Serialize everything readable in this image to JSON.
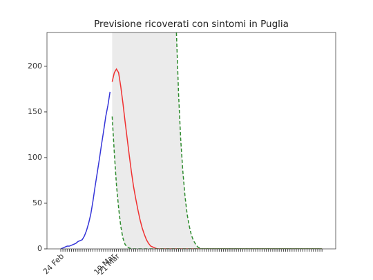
{
  "chart_data": {
    "type": "line",
    "title": "Previsione ricoverati con sintomi in Puglia",
    "categories": [
      "24 Feb",
      null,
      null,
      null,
      null,
      null,
      null,
      null,
      null,
      null,
      null,
      null,
      null,
      null,
      null,
      null,
      null,
      null,
      null,
      null,
      null,
      null,
      null,
      null,
      "19 Mar",
      null,
      "21 Mar",
      null,
      null,
      null,
      null,
      null,
      null,
      null,
      null,
      null,
      null,
      null,
      null,
      null,
      null,
      null,
      null,
      null,
      null,
      null,
      null,
      null,
      null,
      null,
      null,
      null,
      null,
      null,
      null,
      null,
      null,
      null,
      null,
      null,
      null,
      null,
      null,
      null,
      null,
      null,
      null,
      null,
      null,
      null,
      null,
      null,
      null,
      null,
      null,
      null,
      null,
      null,
      null,
      null,
      null,
      null,
      null,
      null,
      null,
      null,
      null,
      null,
      null,
      null,
      null,
      null,
      null,
      null,
      null,
      null,
      null,
      null,
      null,
      null,
      null,
      null,
      null,
      null,
      null,
      null,
      null,
      null,
      null,
      null,
      null,
      null,
      null,
      null,
      null,
      null,
      null,
      null,
      null,
      null,
      null,
      null,
      null
    ],
    "series": [
      {
        "color": "#3535d8",
        "linestyle": "solid",
        "values": [
          0,
          1,
          2,
          3,
          3,
          4,
          5,
          6,
          8,
          9,
          10,
          14,
          20,
          28,
          38,
          52,
          68,
          83,
          98,
          114,
          129,
          145,
          157,
          172,
          null,
          null,
          null,
          null,
          null,
          null,
          null,
          null,
          null,
          null,
          null,
          null,
          null,
          null,
          null,
          null,
          null,
          null,
          null,
          null,
          null,
          null,
          null,
          null,
          null,
          null,
          null,
          null,
          null,
          null,
          null,
          null,
          null,
          null,
          null,
          null,
          null,
          null,
          null,
          null,
          null,
          null,
          null,
          null,
          null,
          null,
          null,
          null,
          null,
          null,
          null,
          null,
          null,
          null,
          null,
          null,
          null,
          null,
          null,
          null,
          null,
          null,
          null,
          null,
          null,
          null,
          null,
          null,
          null,
          null,
          null,
          null,
          null,
          null,
          null,
          null,
          null,
          null,
          null,
          null,
          null,
          null,
          null,
          null,
          null,
          null,
          null,
          null,
          null,
          null,
          null,
          null,
          null,
          null,
          null,
          null,
          null,
          null,
          null
        ]
      },
      {
        "color": "#f03030",
        "linestyle": "solid",
        "values": [
          null,
          null,
          null,
          null,
          null,
          null,
          null,
          null,
          null,
          null,
          null,
          null,
          null,
          null,
          null,
          null,
          null,
          null,
          null,
          null,
          null,
          null,
          null,
          null,
          183,
          193,
          197,
          193,
          178,
          160,
          140,
          121,
          102,
          84,
          68,
          55,
          43,
          32,
          23,
          16,
          10,
          6,
          3,
          2,
          1,
          0,
          0,
          0,
          0,
          0,
          0,
          0,
          0,
          0,
          0,
          0,
          0,
          0,
          0,
          0,
          0,
          0,
          0,
          0,
          0,
          0,
          0,
          0,
          0,
          0,
          0,
          0,
          0,
          0,
          0,
          0,
          0,
          0,
          0,
          0,
          0,
          0,
          0,
          0,
          0,
          0,
          0,
          0,
          0,
          0,
          0,
          0,
          0,
          0,
          0,
          0,
          0,
          0,
          0,
          0,
          0,
          0,
          0,
          0,
          0,
          0,
          0,
          0,
          0,
          0,
          0,
          0,
          0,
          0,
          0,
          0,
          0,
          0,
          0,
          0,
          0,
          0,
          0
        ]
      },
      {
        "color": "#2e8b2e",
        "linestyle": "dashed",
        "values": [
          null,
          null,
          null,
          null,
          null,
          null,
          null,
          null,
          null,
          null,
          null,
          null,
          null,
          null,
          null,
          null,
          null,
          null,
          null,
          null,
          null,
          null,
          null,
          null,
          145,
          105,
          70,
          45,
          25,
          12,
          5,
          2,
          1,
          0,
          0,
          0,
          0,
          0,
          0,
          0,
          0,
          0,
          0,
          0,
          0,
          0,
          0,
          0,
          0,
          0,
          0,
          0,
          0,
          0,
          0,
          0,
          0,
          0,
          0,
          0,
          0,
          0,
          0,
          0,
          0,
          0,
          0,
          0,
          0,
          0,
          0,
          0,
          0,
          0,
          0,
          0,
          0,
          0,
          0,
          0,
          0,
          0,
          0,
          0,
          0,
          0,
          0,
          0,
          0,
          0,
          0,
          0,
          0,
          0,
          0,
          0,
          0,
          0,
          0,
          0,
          0,
          0,
          0,
          0,
          0,
          0,
          0,
          0,
          0,
          0,
          0,
          0,
          0,
          0,
          0,
          0,
          0,
          0,
          0,
          0,
          0,
          0,
          0
        ]
      },
      {
        "color": "#2e8b2e",
        "linestyle": "dashed",
        "values": [
          null,
          null,
          null,
          null,
          null,
          null,
          null,
          null,
          null,
          null,
          null,
          null,
          null,
          null,
          null,
          null,
          null,
          null,
          null,
          null,
          null,
          null,
          null,
          null,
          null,
          null,
          null,
          null,
          null,
          null,
          null,
          null,
          null,
          null,
          null,
          null,
          null,
          null,
          null,
          null,
          null,
          null,
          null,
          null,
          null,
          null,
          null,
          null,
          null,
          null,
          null,
          null,
          null,
          null,
          237,
          170,
          120,
          85,
          58,
          38,
          25,
          15,
          9,
          5,
          2,
          1,
          0,
          0,
          0,
          0,
          0,
          0,
          0,
          0,
          0,
          0,
          0,
          0,
          0,
          0,
          0,
          0,
          0,
          0,
          0,
          0,
          0,
          0,
          0,
          0,
          0,
          0,
          0,
          0,
          0,
          0,
          0,
          0,
          0,
          0,
          0,
          0,
          0,
          0,
          0,
          0,
          0,
          0,
          0,
          0,
          0,
          0,
          0,
          0,
          0,
          0,
          0,
          0,
          0,
          0,
          0,
          0,
          0
        ]
      }
    ],
    "band_color": "#ebebeb",
    "ylim": [
      0,
      237
    ],
    "yticks": [
      0,
      50,
      100,
      150,
      200
    ]
  }
}
